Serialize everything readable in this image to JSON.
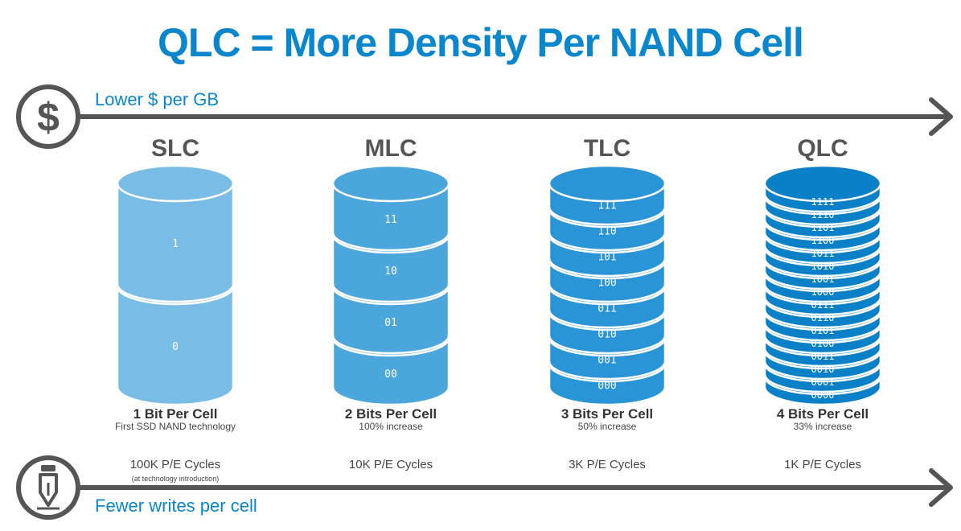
{
  "title": "QLC = More Density Per NAND Cell",
  "top_axis_label": "Lower $ per GB",
  "bottom_axis_label": "Fewer writes per cell",
  "colors": {
    "title": "#0a86cc",
    "arrow": "#555555",
    "slc": "#79bde6",
    "mlc": "#4ba6dc",
    "tlc": "#2994d6",
    "qlc": "#0a80c8"
  },
  "icons": {
    "top": "dollar-circle-icon",
    "bottom": "pen-circle-icon"
  },
  "cells": [
    {
      "name": "SLC",
      "bits_label": "1 Bit Per Cell",
      "note": "First SSD NAND technology",
      "pe_cycles": "100K P/E Cycles",
      "pe_note": "(at technology introduction)",
      "levels": [
        "1",
        "0"
      ]
    },
    {
      "name": "MLC",
      "bits_label": "2 Bits Per Cell",
      "note": "100% increase",
      "pe_cycles": "10K P/E Cycles",
      "pe_note": "",
      "levels": [
        "11",
        "10",
        "01",
        "00"
      ]
    },
    {
      "name": "TLC",
      "bits_label": "3 Bits Per Cell",
      "note": "50% increase",
      "pe_cycles": "3K P/E Cycles",
      "pe_note": "",
      "levels": [
        "111",
        "110",
        "101",
        "100",
        "011",
        "010",
        "001",
        "000"
      ]
    },
    {
      "name": "QLC",
      "bits_label": "4 Bits Per Cell",
      "note": "33% increase",
      "pe_cycles": "1K P/E Cycles",
      "pe_note": "",
      "levels": [
        "1111",
        "1110",
        "1101",
        "1100",
        "1011",
        "1010",
        "1001",
        "1000",
        "0111",
        "0110",
        "0101",
        "0100",
        "0011",
        "0010",
        "0001",
        "0000"
      ]
    }
  ]
}
